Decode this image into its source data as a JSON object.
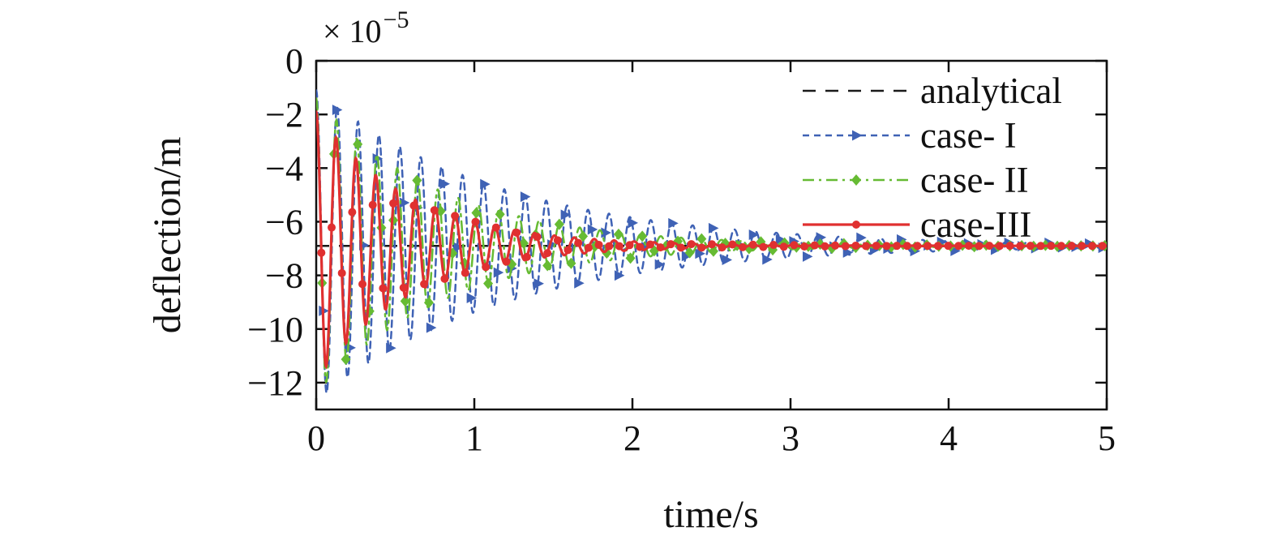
{
  "figure": {
    "background": "#ffffff"
  },
  "chart_data": {
    "type": "line",
    "title": "",
    "xlabel": "time/s",
    "ylabel": "deflection/m",
    "y_axis_multiplier": {
      "base": "× 10",
      "exponent": "−5"
    },
    "y_unit_scale": "1e-5 m per axis unit",
    "xlim": [
      0,
      5
    ],
    "ylim": [
      -13,
      0
    ],
    "xticks": [
      0,
      1,
      2,
      3,
      4,
      5
    ],
    "xtick_labels": [
      "0",
      "1",
      "2",
      "3",
      "4",
      "5"
    ],
    "yticks": [
      0,
      -2,
      -4,
      -6,
      -8,
      -10,
      -12
    ],
    "ytick_labels": [
      "0",
      "−2",
      "−4",
      "−6",
      "−8",
      "−10",
      "−12"
    ],
    "grid": false,
    "legend_position": "top-right-inside",
    "equilibrium_deflection": -6.9,
    "model": "y(t) = equilibrium + amplitude * exp(-decay*t) * cos(omega*t + phase); y in units of 1e-5 m, t in s; all cases start near 0 deflection, oscillate to minimum ~ -12e-5 m and converge to the analytical static deflection -6.9e-5 m by t ~ 3 s",
    "series": [
      {
        "name": "analytical",
        "type": "constant",
        "value": -6.9,
        "color": "#1a1a1a",
        "style": "dashed",
        "dash": "16 12",
        "width": 2.5,
        "marker": "none"
      },
      {
        "name": "case- I",
        "type": "damped",
        "equilibrium": -6.9,
        "amplitude": 5.8,
        "decay": 0.85,
        "omega": 47.5,
        "phase": 0,
        "color": "#3f62b5",
        "style": "dashed",
        "dash": "8 6",
        "width": 2.5,
        "marker": "triangle-right",
        "marker_interval": 0.085
      },
      {
        "name": "case- II",
        "type": "damped",
        "equilibrium": -6.9,
        "amplitude": 5.5,
        "decay": 1.25,
        "omega": 49,
        "phase": 0,
        "color": "#66bb33",
        "style": "dash-dot",
        "dash": "14 6 3 6",
        "width": 2.5,
        "marker": "diamond",
        "marker_interval": 0.075
      },
      {
        "name": "case-III",
        "type": "damped",
        "equilibrium": -6.9,
        "amplitude": 5.0,
        "decay": 1.7,
        "omega": 50,
        "phase": 0,
        "color": "#e03030",
        "style": "solid",
        "dash": "",
        "width": 3.2,
        "marker": "circle",
        "marker_interval": 0.065
      }
    ]
  }
}
